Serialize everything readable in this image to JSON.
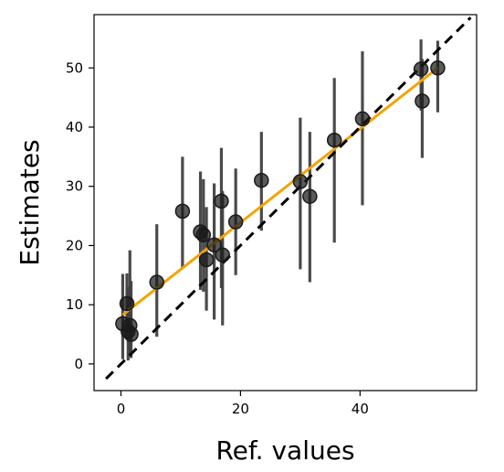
{
  "chart_data": {
    "type": "scatter",
    "xlabel": "Ref. values",
    "ylabel": "Estimates",
    "xlim": [
      -4.5,
      59.5
    ],
    "ylim": [
      -4.5,
      59
    ],
    "xticks": [
      0,
      20,
      40
    ],
    "yticks": [
      0,
      10,
      20,
      30,
      40,
      50
    ],
    "grid": false,
    "legend": "none",
    "colors": {
      "points": "#1a1a1a",
      "errorbars": "#404040",
      "fit_line": "#f5a300",
      "identity_line": "#000000"
    },
    "points": [
      {
        "x": 0.3,
        "y": 6.8,
        "lo": 0.8,
        "hi": 15.2
      },
      {
        "x": 1.0,
        "y": 10.2,
        "lo": 4.5,
        "hi": 15.3
      },
      {
        "x": 1.2,
        "y": 5.5,
        "lo": 0.6,
        "hi": 13.0
      },
      {
        "x": 1.5,
        "y": 6.5,
        "lo": 1.5,
        "hi": 19.2
      },
      {
        "x": 1.7,
        "y": 5.0,
        "lo": 1.0,
        "hi": 14.0
      },
      {
        "x": 6.0,
        "y": 13.8,
        "lo": 4.6,
        "hi": 23.6
      },
      {
        "x": 10.3,
        "y": 25.8,
        "lo": 16.2,
        "hi": 35.0
      },
      {
        "x": 13.3,
        "y": 22.3,
        "lo": 12.5,
        "hi": 32.5
      },
      {
        "x": 13.8,
        "y": 21.8,
        "lo": 12.2,
        "hi": 31.2
      },
      {
        "x": 14.3,
        "y": 17.6,
        "lo": 9.0,
        "hi": 26.5
      },
      {
        "x": 15.6,
        "y": 20.1,
        "lo": 7.5,
        "hi": 30.5
      },
      {
        "x": 16.8,
        "y": 27.5,
        "lo": 12.8,
        "hi": 36.5
      },
      {
        "x": 17.0,
        "y": 18.4,
        "lo": 6.5,
        "hi": 29.2
      },
      {
        "x": 19.2,
        "y": 24.0,
        "lo": 15.0,
        "hi": 33.0
      },
      {
        "x": 23.5,
        "y": 31.0,
        "lo": 22.5,
        "hi": 39.2
      },
      {
        "x": 30.0,
        "y": 30.8,
        "lo": 16.0,
        "hi": 41.6
      },
      {
        "x": 31.6,
        "y": 28.3,
        "lo": 13.8,
        "hi": 39.2
      },
      {
        "x": 35.7,
        "y": 37.8,
        "lo": 20.5,
        "hi": 48.3
      },
      {
        "x": 40.4,
        "y": 41.4,
        "lo": 26.8,
        "hi": 52.8
      },
      {
        "x": 50.2,
        "y": 49.8,
        "lo": 42.8,
        "hi": 54.8
      },
      {
        "x": 50.4,
        "y": 44.4,
        "lo": 34.8,
        "hi": 51.5
      },
      {
        "x": 53.0,
        "y": 50.0,
        "lo": 42.5,
        "hi": 54.6
      }
    ],
    "fit_line": {
      "x": [
        0.3,
        53.0
      ],
      "y": [
        8.3,
        50.0
      ],
      "style": "solid"
    },
    "identity_line": {
      "x": [
        -2.5,
        58.5
      ],
      "y": [
        -2.5,
        58.5
      ],
      "style": "dashed"
    }
  }
}
